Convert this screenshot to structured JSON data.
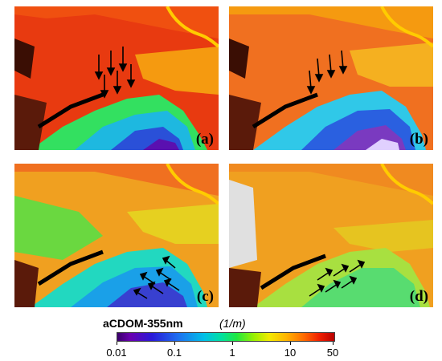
{
  "panels": [
    {
      "id": "a",
      "label": "(a)",
      "arrow_direction": "down"
    },
    {
      "id": "b",
      "label": "(b)",
      "arrow_direction": "down"
    },
    {
      "id": "c",
      "label": "(c)",
      "arrow_direction": "up-left"
    },
    {
      "id": "d",
      "label": "(d)",
      "arrow_direction": "up-right"
    }
  ],
  "legend": {
    "title": "aCDOM-355nm",
    "unit": "(1/m)",
    "scale": "log",
    "ticks": [
      "0.01",
      "0.1",
      "1",
      "10",
      "50"
    ],
    "colors": [
      "#3a006b",
      "#2a1ad8",
      "#00c0e8",
      "#20e840",
      "#f2ea00",
      "#ff6a00",
      "#b80000"
    ]
  }
}
